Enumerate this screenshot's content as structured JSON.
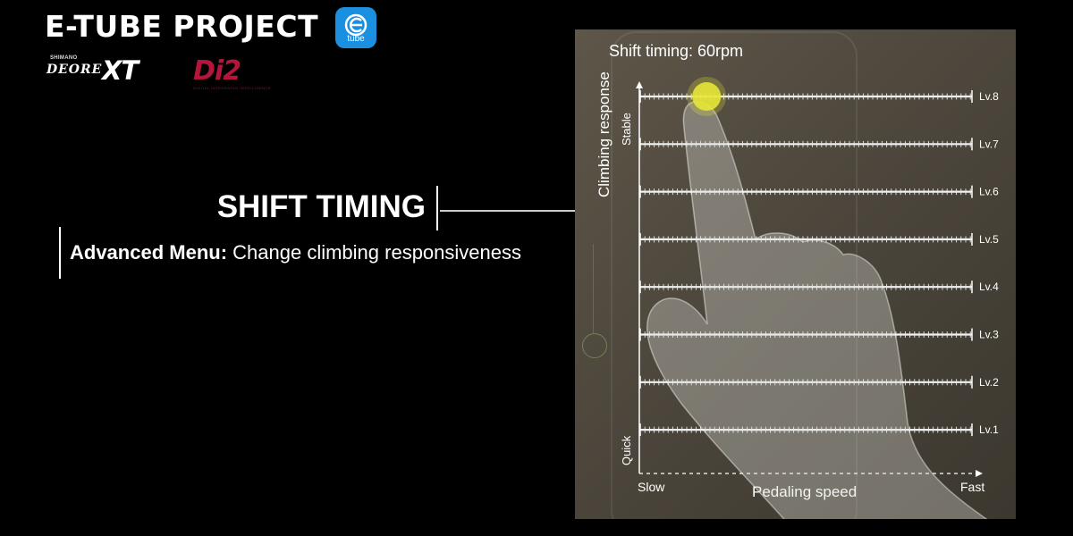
{
  "brand": {
    "title": "E-TUBE PROJECT",
    "app_icon_label": "tube",
    "shimano_small": "SHIMANO",
    "deore": "DEORE",
    "xt": "XT",
    "di2": "Di2",
    "di2_sub": "DIGITAL INTEGRATED INTELLIGENCE"
  },
  "headline": "SHIFT TIMING",
  "subtitle": {
    "bold": "Advanced Menu:",
    "rest": " Change climbing responsiveness"
  },
  "panel": {
    "title": "Shift timing: 60rpm",
    "ylabel": "Climbing response",
    "y_top": "Stable",
    "y_bottom": "Quick",
    "x_left": "Slow",
    "x_right": "Fast",
    "xlabel": "Pedaling speed",
    "levels": [
      "Lv.8",
      "Lv.7",
      "Lv.6",
      "Lv.5",
      "Lv.4",
      "Lv.3",
      "Lv.2",
      "Lv.1"
    ],
    "selected_level": "Lv.8",
    "selected_position": 0.2,
    "selector_color": "#e6e639",
    "background_color": "#544d41"
  }
}
